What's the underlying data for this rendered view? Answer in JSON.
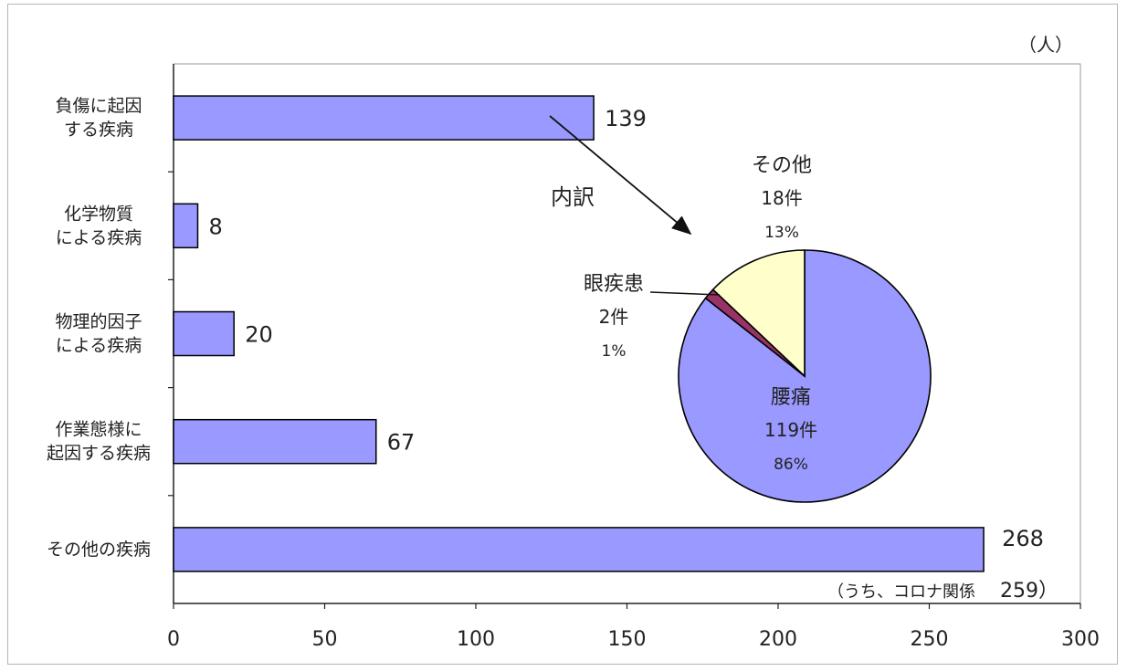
{
  "chart_data": [
    {
      "type": "bar",
      "orientation": "horizontal",
      "unit_label": "（人）",
      "categories": [
        [
          "負傷に起因",
          "する疾病"
        ],
        [
          "化学物質",
          "による疾病"
        ],
        [
          "物理的因子",
          "による疾病"
        ],
        [
          "作業態様に",
          "起因する疾病"
        ],
        [
          "その他の疾病"
        ]
      ],
      "values": [
        139,
        8,
        20,
        67,
        268
      ],
      "data_labels": [
        "139",
        "8",
        "20",
        "67",
        "268"
      ],
      "xlim": [
        0,
        300
      ],
      "xticks": [
        0,
        50,
        100,
        150,
        200,
        250,
        300
      ],
      "grid": false,
      "bar_color": "#9999ff",
      "annotation": {
        "text": "（うち、コロナ関係",
        "value": "259）"
      }
    },
    {
      "type": "pie",
      "callout_label": "内訳",
      "slices": [
        {
          "name": "腰痛",
          "value": 119,
          "count_label": "119件",
          "pct_label": "86%",
          "color": "#9999ff"
        },
        {
          "name": "眼疾患",
          "value": 2,
          "count_label": "2件",
          "pct_label": "1%",
          "color": "#993366"
        },
        {
          "name": "その他",
          "value": 18,
          "count_label": "18件",
          "pct_label": "13%",
          "color": "#ffffcc"
        }
      ]
    }
  ]
}
